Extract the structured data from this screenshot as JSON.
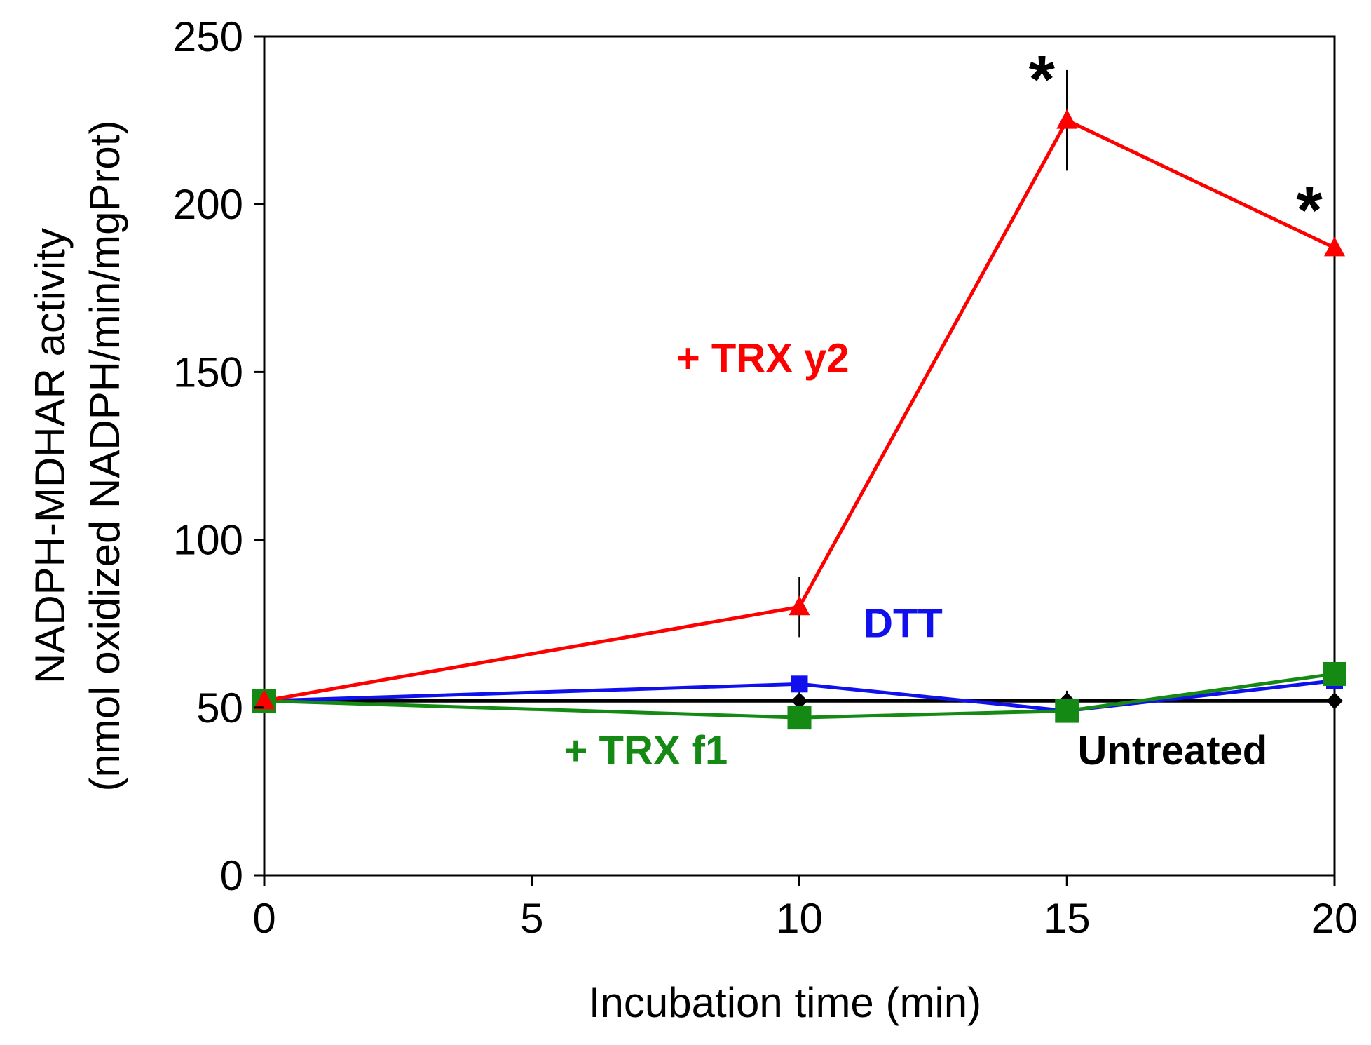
{
  "chart_data": {
    "type": "line",
    "title": "",
    "xlabel": "Incubation time (min)",
    "ylabel_line1": "NADPH-MDHAR activity",
    "ylabel_line2": "(nmol oxidized NADPH/min/mgProt)",
    "xlim": [
      0,
      20
    ],
    "ylim": [
      0,
      250
    ],
    "x_ticks": [
      0,
      5,
      10,
      15,
      20
    ],
    "y_ticks": [
      0,
      50,
      100,
      150,
      200,
      250
    ],
    "grid": false,
    "legend": "inline labels",
    "series": [
      {
        "name": "Untreated",
        "color": "#000000",
        "marker": "diamond",
        "x": [
          0,
          10,
          15,
          20
        ],
        "values": [
          52,
          52,
          52,
          52
        ],
        "errors": [
          0,
          3,
          3,
          4
        ]
      },
      {
        "name": "DTT",
        "color": "#1010ee",
        "marker": "square",
        "x": [
          0,
          10,
          15,
          20
        ],
        "values": [
          52,
          57,
          49,
          58
        ],
        "errors": [
          0,
          0,
          0,
          0
        ]
      },
      {
        "name": "+ TRX f1",
        "color": "#148a14",
        "marker": "square",
        "x": [
          0,
          10,
          15,
          20
        ],
        "values": [
          52,
          47,
          49,
          60
        ],
        "errors": [
          0,
          0,
          0,
          0
        ]
      },
      {
        "name": "+ TRX y2",
        "color": "#ff0000",
        "marker": "triangle",
        "x": [
          0,
          10,
          15,
          20
        ],
        "values": [
          52,
          80,
          225,
          187
        ],
        "errors": [
          0,
          9,
          15,
          14
        ]
      }
    ],
    "annotations": [
      {
        "text": "*",
        "x": 15,
        "y": 240
      },
      {
        "text": "*",
        "x": 20,
        "y": 201
      }
    ],
    "series_labels": [
      {
        "text": "+ TRX y2",
        "color": "#ff0000",
        "x": 7.7,
        "y": 150
      },
      {
        "text": "DTT",
        "color": "#1010ee",
        "x": 11.2,
        "y": 71
      },
      {
        "text": "+ TRX f1",
        "color": "#148a14",
        "x": 5.6,
        "y": 33
      },
      {
        "text": "Untreated",
        "color": "#000000",
        "x": 15.2,
        "y": 33
      }
    ]
  }
}
